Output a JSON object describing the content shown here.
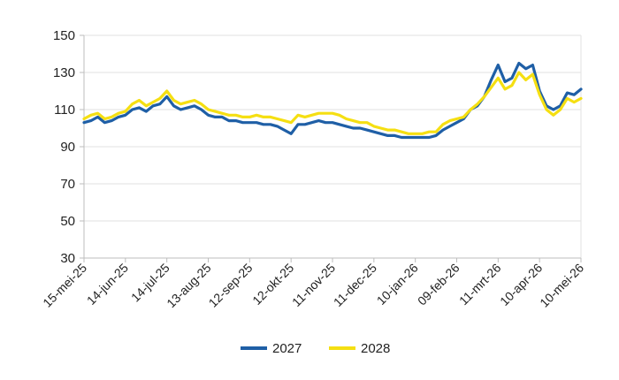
{
  "chart_data": {
    "type": "line",
    "ylim": [
      30,
      150
    ],
    "yticks": [
      30,
      50,
      70,
      90,
      110,
      130,
      150
    ],
    "xlim": [
      "2025-05-15",
      "2026-05-10"
    ],
    "xticks": [
      "15-mei-25",
      "14-jun-25",
      "14-jul-25",
      "13-aug-25",
      "12-sep-25",
      "12-okt-25",
      "11-nov-25",
      "11-dec-25",
      "10-jan-26",
      "09-feb-26",
      "11-mrt-26",
      "10-apr-26",
      "10-mei-26"
    ],
    "grid": "horizontal",
    "legend_position": "bottom",
    "series": [
      {
        "name": "2027",
        "color": "#1f5fa6",
        "points": [
          [
            "2025-05-15",
            103
          ],
          [
            "2025-05-20",
            104
          ],
          [
            "2025-05-25",
            106
          ],
          [
            "2025-05-30",
            103
          ],
          [
            "2025-06-04",
            104
          ],
          [
            "2025-06-09",
            106
          ],
          [
            "2025-06-14",
            107
          ],
          [
            "2025-06-19",
            110
          ],
          [
            "2025-06-24",
            111
          ],
          [
            "2025-06-29",
            109
          ],
          [
            "2025-07-04",
            112
          ],
          [
            "2025-07-09",
            113
          ],
          [
            "2025-07-14",
            117
          ],
          [
            "2025-07-19",
            112
          ],
          [
            "2025-07-24",
            110
          ],
          [
            "2025-07-29",
            111
          ],
          [
            "2025-08-03",
            112
          ],
          [
            "2025-08-08",
            110
          ],
          [
            "2025-08-13",
            107
          ],
          [
            "2025-08-18",
            106
          ],
          [
            "2025-08-23",
            106
          ],
          [
            "2025-08-28",
            104
          ],
          [
            "2025-09-02",
            104
          ],
          [
            "2025-09-07",
            103
          ],
          [
            "2025-09-12",
            103
          ],
          [
            "2025-09-17",
            103
          ],
          [
            "2025-09-22",
            102
          ],
          [
            "2025-09-27",
            102
          ],
          [
            "2025-10-02",
            101
          ],
          [
            "2025-10-07",
            99
          ],
          [
            "2025-10-12",
            97
          ],
          [
            "2025-10-17",
            102
          ],
          [
            "2025-10-22",
            102
          ],
          [
            "2025-10-27",
            103
          ],
          [
            "2025-11-01",
            104
          ],
          [
            "2025-11-06",
            103
          ],
          [
            "2025-11-11",
            103
          ],
          [
            "2025-11-16",
            102
          ],
          [
            "2025-11-21",
            101
          ],
          [
            "2025-11-26",
            100
          ],
          [
            "2025-12-01",
            100
          ],
          [
            "2025-12-06",
            99
          ],
          [
            "2025-12-11",
            98
          ],
          [
            "2025-12-16",
            97
          ],
          [
            "2025-12-21",
            96
          ],
          [
            "2025-12-26",
            96
          ],
          [
            "2025-12-31",
            95
          ],
          [
            "2026-01-05",
            95
          ],
          [
            "2026-01-10",
            95
          ],
          [
            "2026-01-15",
            95
          ],
          [
            "2026-01-20",
            95
          ],
          [
            "2026-01-25",
            96
          ],
          [
            "2026-01-30",
            99
          ],
          [
            "2026-02-04",
            101
          ],
          [
            "2026-02-09",
            103
          ],
          [
            "2026-02-14",
            105
          ],
          [
            "2026-02-19",
            110
          ],
          [
            "2026-02-24",
            112
          ],
          [
            "2026-03-01",
            117
          ],
          [
            "2026-03-06",
            126
          ],
          [
            "2026-03-11",
            134
          ],
          [
            "2026-03-16",
            125
          ],
          [
            "2026-03-21",
            127
          ],
          [
            "2026-03-26",
            135
          ],
          [
            "2026-03-31",
            132
          ],
          [
            "2026-04-05",
            134
          ],
          [
            "2026-04-10",
            120
          ],
          [
            "2026-04-15",
            112
          ],
          [
            "2026-04-20",
            110
          ],
          [
            "2026-04-25",
            112
          ],
          [
            "2026-04-30",
            119
          ],
          [
            "2026-05-05",
            118
          ],
          [
            "2026-05-10",
            121
          ]
        ]
      },
      {
        "name": "2028",
        "color": "#f5df12",
        "points": [
          [
            "2025-05-15",
            105
          ],
          [
            "2025-05-20",
            107
          ],
          [
            "2025-05-25",
            108
          ],
          [
            "2025-05-30",
            105
          ],
          [
            "2025-06-04",
            106
          ],
          [
            "2025-06-09",
            108
          ],
          [
            "2025-06-14",
            109
          ],
          [
            "2025-06-19",
            113
          ],
          [
            "2025-06-24",
            115
          ],
          [
            "2025-06-29",
            112
          ],
          [
            "2025-07-04",
            114
          ],
          [
            "2025-07-09",
            116
          ],
          [
            "2025-07-14",
            120
          ],
          [
            "2025-07-19",
            115
          ],
          [
            "2025-07-24",
            113
          ],
          [
            "2025-07-29",
            114
          ],
          [
            "2025-08-03",
            115
          ],
          [
            "2025-08-08",
            113
          ],
          [
            "2025-08-13",
            110
          ],
          [
            "2025-08-18",
            109
          ],
          [
            "2025-08-23",
            108
          ],
          [
            "2025-08-28",
            107
          ],
          [
            "2025-09-02",
            107
          ],
          [
            "2025-09-07",
            106
          ],
          [
            "2025-09-12",
            106
          ],
          [
            "2025-09-17",
            107
          ],
          [
            "2025-09-22",
            106
          ],
          [
            "2025-09-27",
            106
          ],
          [
            "2025-10-02",
            105
          ],
          [
            "2025-10-07",
            104
          ],
          [
            "2025-10-12",
            103
          ],
          [
            "2025-10-17",
            107
          ],
          [
            "2025-10-22",
            106
          ],
          [
            "2025-10-27",
            107
          ],
          [
            "2025-11-01",
            108
          ],
          [
            "2025-11-06",
            108
          ],
          [
            "2025-11-11",
            108
          ],
          [
            "2025-11-16",
            107
          ],
          [
            "2025-11-21",
            105
          ],
          [
            "2025-11-26",
            104
          ],
          [
            "2025-12-01",
            103
          ],
          [
            "2025-12-06",
            103
          ],
          [
            "2025-12-11",
            101
          ],
          [
            "2025-12-16",
            100
          ],
          [
            "2025-12-21",
            99
          ],
          [
            "2025-12-26",
            99
          ],
          [
            "2025-12-31",
            98
          ],
          [
            "2026-01-05",
            97
          ],
          [
            "2026-01-10",
            97
          ],
          [
            "2026-01-15",
            97
          ],
          [
            "2026-01-20",
            98
          ],
          [
            "2026-01-25",
            98
          ],
          [
            "2026-01-30",
            102
          ],
          [
            "2026-02-04",
            104
          ],
          [
            "2026-02-09",
            105
          ],
          [
            "2026-02-14",
            106
          ],
          [
            "2026-02-19",
            110
          ],
          [
            "2026-02-24",
            113
          ],
          [
            "2026-03-01",
            117
          ],
          [
            "2026-03-06",
            122
          ],
          [
            "2026-03-11",
            127
          ],
          [
            "2026-03-16",
            121
          ],
          [
            "2026-03-21",
            123
          ],
          [
            "2026-03-26",
            130
          ],
          [
            "2026-03-31",
            126
          ],
          [
            "2026-04-05",
            129
          ],
          [
            "2026-04-10",
            118
          ],
          [
            "2026-04-15",
            110
          ],
          [
            "2026-04-20",
            107
          ],
          [
            "2026-04-25",
            110
          ],
          [
            "2026-04-30",
            116
          ],
          [
            "2026-05-05",
            114
          ],
          [
            "2026-05-10",
            116
          ]
        ]
      }
    ]
  }
}
